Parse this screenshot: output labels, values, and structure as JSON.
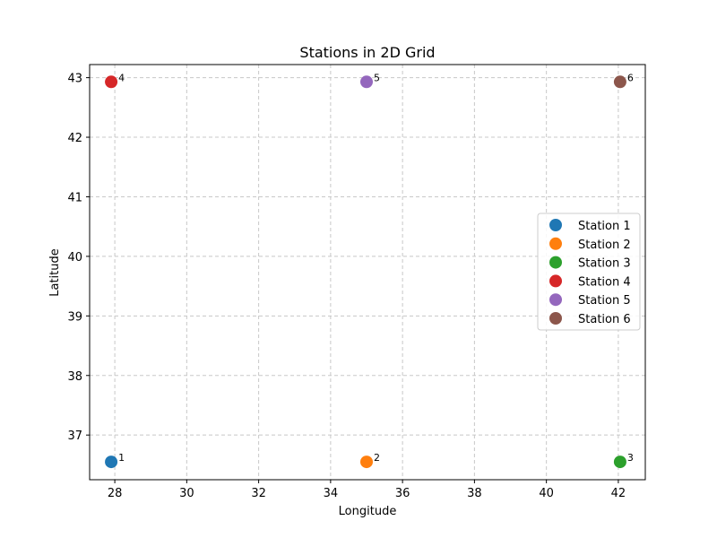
{
  "chart_data": {
    "type": "scatter",
    "title": "Stations in 2D Grid",
    "xlabel": "Longitude",
    "ylabel": "Latitude",
    "xlim": [
      27.3,
      42.75
    ],
    "ylim": [
      36.25,
      43.22
    ],
    "xticks": [
      28,
      30,
      32,
      34,
      36,
      38,
      40,
      42
    ],
    "yticks": [
      37,
      38,
      39,
      40,
      41,
      42,
      43
    ],
    "grid": true,
    "legend_position": "right",
    "series": [
      {
        "name": "Station 1",
        "label": "1",
        "color": "#1f77b4",
        "x": 27.9,
        "y": 36.55
      },
      {
        "name": "Station 2",
        "label": "2",
        "color": "#ff7f0e",
        "x": 35.0,
        "y": 36.55
      },
      {
        "name": "Station 3",
        "label": "3",
        "color": "#2ca02c",
        "x": 42.05,
        "y": 36.55
      },
      {
        "name": "Station 4",
        "label": "4",
        "color": "#d62728",
        "x": 27.9,
        "y": 42.93
      },
      {
        "name": "Station 5",
        "label": "5",
        "color": "#9467bd",
        "x": 35.0,
        "y": 42.93
      },
      {
        "name": "Station 6",
        "label": "6",
        "color": "#8c564b",
        "x": 42.05,
        "y": 42.93
      }
    ]
  }
}
